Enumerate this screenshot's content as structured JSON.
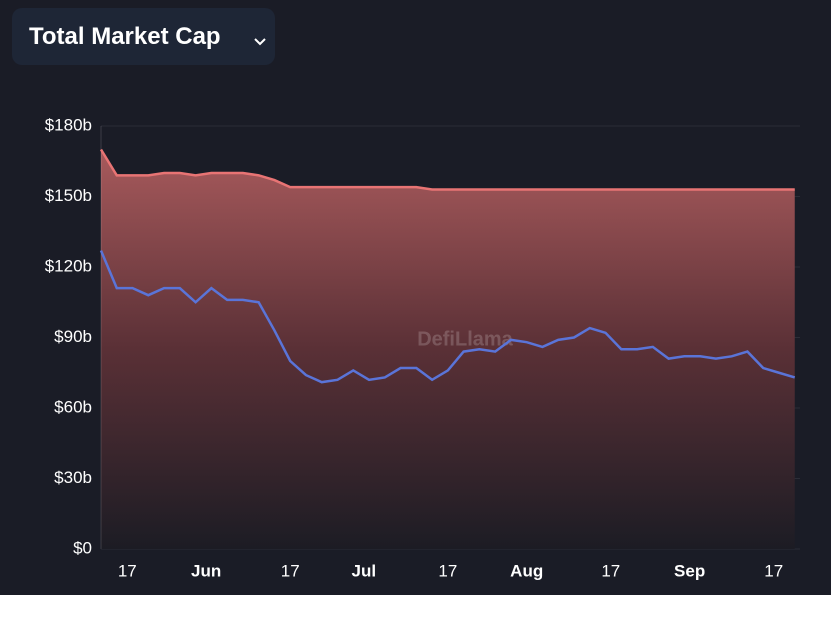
{
  "chart_data": {
    "type": "area-line",
    "title": "Total Market Cap",
    "watermark": "DefiLlama",
    "x": [
      "05-12",
      "05-15",
      "05-18",
      "05-21",
      "05-24",
      "05-27",
      "05-30",
      "06-02",
      "06-05",
      "06-08",
      "06-11",
      "06-14",
      "06-17",
      "06-20",
      "06-23",
      "06-26",
      "06-29",
      "07-02",
      "07-05",
      "07-08",
      "07-11",
      "07-14",
      "07-17",
      "07-20",
      "07-23",
      "07-26",
      "07-29",
      "08-01",
      "08-04",
      "08-07",
      "08-10",
      "08-13",
      "08-16",
      "08-19",
      "08-22",
      "08-25",
      "08-28",
      "08-31",
      "09-03",
      "09-06",
      "09-09",
      "09-12",
      "09-15",
      "09-18",
      "09-21"
    ],
    "xlim": [
      "05-12",
      "09-22"
    ],
    "xticks": [
      {
        "value": "05-17",
        "label": "17"
      },
      {
        "value": "06-01",
        "label": "Jun"
      },
      {
        "value": "06-17",
        "label": "17"
      },
      {
        "value": "07-01",
        "label": "Jul"
      },
      {
        "value": "07-17",
        "label": "17"
      },
      {
        "value": "08-01",
        "label": "Aug"
      },
      {
        "value": "08-17",
        "label": "17"
      },
      {
        "value": "09-01",
        "label": "Sep"
      },
      {
        "value": "09-17",
        "label": "17"
      }
    ],
    "ylim": [
      0,
      180
    ],
    "yticks": [
      {
        "value": 0,
        "label": "$0"
      },
      {
        "value": 30,
        "label": "$30b"
      },
      {
        "value": 60,
        "label": "$60b"
      },
      {
        "value": 90,
        "label": "$90b"
      },
      {
        "value": 120,
        "label": "$120b"
      },
      {
        "value": 150,
        "label": "$150b"
      },
      {
        "value": 180,
        "label": "$180b"
      }
    ],
    "grid": true,
    "series": [
      {
        "kind": "area",
        "color": "#e87474",
        "values": [
          170,
          159,
          159,
          159,
          160,
          160,
          159,
          160,
          160,
          160,
          159,
          157,
          154,
          154,
          154,
          154,
          154,
          154,
          154,
          154,
          154,
          153,
          153,
          153,
          153,
          153,
          153,
          153,
          153,
          153,
          153,
          153,
          153,
          153,
          153,
          153,
          153,
          153,
          153,
          153,
          153,
          153,
          153,
          153,
          153
        ]
      },
      {
        "kind": "line",
        "color": "#5a74d8",
        "values": [
          127,
          111,
          111,
          108,
          111,
          111,
          105,
          111,
          106,
          106,
          105,
          93,
          80,
          74,
          71,
          72,
          76,
          72,
          73,
          77,
          77,
          72,
          76,
          84,
          85,
          84,
          89,
          88,
          86,
          89,
          90,
          94,
          92,
          85,
          85,
          86,
          81,
          82,
          82,
          81,
          82,
          84,
          77,
          75,
          73
        ]
      }
    ]
  }
}
